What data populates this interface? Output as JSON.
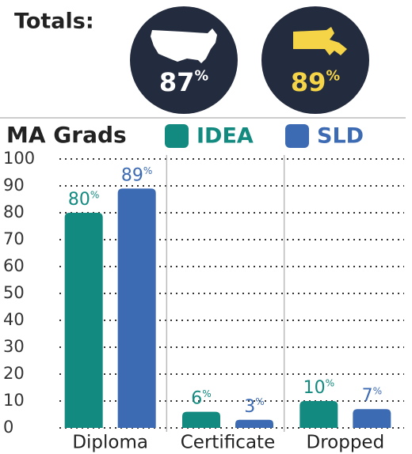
{
  "totals": {
    "title": "Totals:",
    "items": [
      {
        "label": "87%"
      },
      {
        "label": "89%"
      }
    ]
  },
  "chart_data": {
    "type": "bar",
    "title": "MA Grads",
    "categories": [
      "Diploma",
      "Certificate",
      "Dropped"
    ],
    "series": [
      {
        "name": "IDEA",
        "color": "#138a80",
        "values": [
          80,
          6,
          10
        ],
        "value_labels": [
          "80%",
          "6%",
          "10%"
        ]
      },
      {
        "name": "SLD",
        "color": "#3d6bb3",
        "values": [
          89,
          3,
          7
        ],
        "value_labels": [
          "89%",
          "3%",
          "7%"
        ]
      }
    ],
    "ylim": [
      0,
      100
    ],
    "yticks": [
      0,
      10,
      20,
      30,
      40,
      50,
      60,
      70,
      80,
      90,
      100
    ],
    "grid": true
  }
}
